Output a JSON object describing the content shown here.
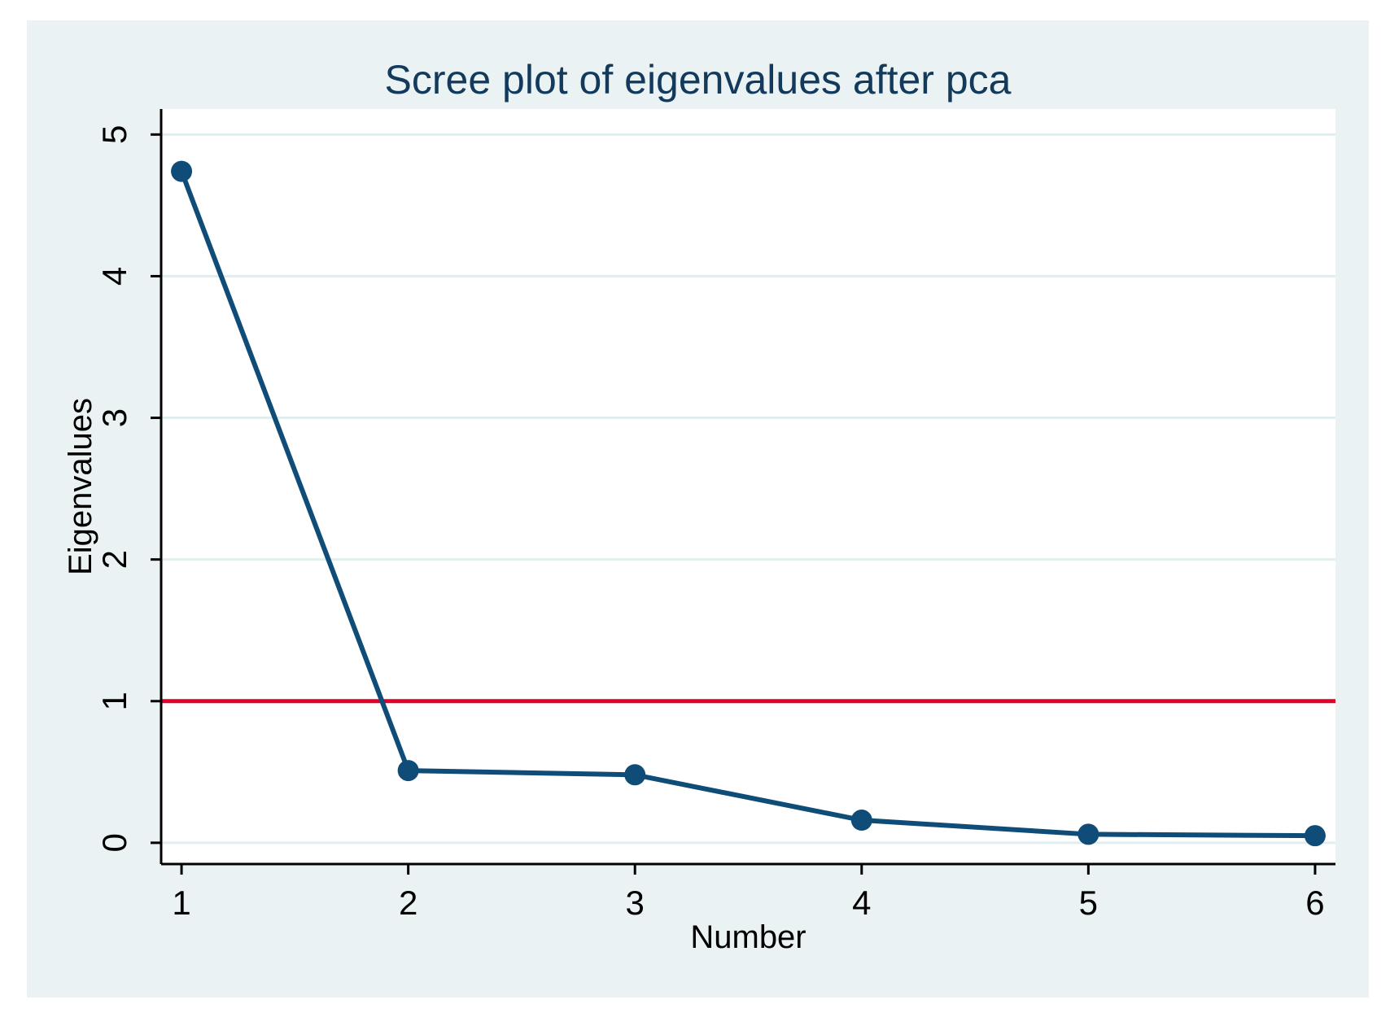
{
  "chart_data": {
    "type": "line",
    "title": "Scree plot of eigenvalues after pca",
    "xlabel": "Number",
    "ylabel": "Eigenvalues",
    "x": [
      1,
      2,
      3,
      4,
      5,
      6
    ],
    "series": [
      {
        "name": "Eigenvalues",
        "values": [
          4.74,
          0.51,
          0.48,
          0.16,
          0.06,
          0.05
        ]
      }
    ],
    "reference_line": {
      "axis": "y",
      "value": 1
    },
    "x_ticks": [
      1,
      2,
      3,
      4,
      5,
      6
    ],
    "y_ticks": [
      0,
      1,
      2,
      3,
      4,
      5
    ],
    "xlim": [
      0.91,
      6.09
    ],
    "ylim": [
      -0.15,
      5.18
    ],
    "grid": "horizontal",
    "legend": "none",
    "marker": "filled-circle",
    "colors": {
      "line": "#0f4d78",
      "marker": "#0f4d78",
      "reference": "#e0002b",
      "background": "#eaf2f3",
      "plot_background": "#ffffff",
      "gridline": "#e2edf0",
      "title": "#13395b",
      "axis": "#000000",
      "tick_label": "#000000"
    }
  }
}
